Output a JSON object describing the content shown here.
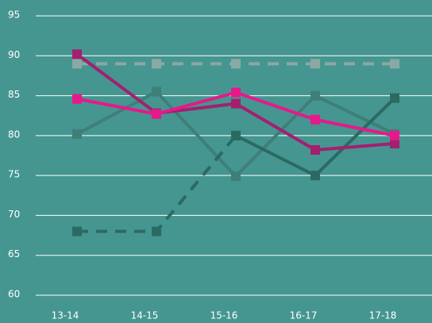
{
  "chart_data": {
    "type": "line",
    "categories": [
      "13-14",
      "14-15",
      "15-16",
      "16-17",
      "17-18"
    ],
    "ylim": [
      60,
      95
    ],
    "yticks": [
      60,
      65,
      70,
      75,
      80,
      85,
      90,
      95
    ],
    "grid": true,
    "series": [
      {
        "color": "#8aa9a4",
        "dashed": true,
        "values": [
          89,
          89,
          89,
          89,
          89
        ]
      },
      {
        "color": "#3e7f78",
        "dashed": false,
        "values": [
          80.2,
          85.5,
          74.9,
          85,
          80.2
        ]
      },
      {
        "color": "#2b6a62",
        "dashed": true,
        "values": [
          68,
          68,
          80,
          null,
          null
        ]
      },
      {
        "color": "#2b6a62",
        "dashed": false,
        "values": [
          null,
          null,
          80,
          75,
          84.7
        ]
      },
      {
        "color": "#a3206f",
        "dashed": false,
        "values": [
          90.2,
          82.8,
          84,
          78.2,
          79
        ]
      },
      {
        "color": "#e6198a",
        "dashed": false,
        "values": [
          84.6,
          82.7,
          85.4,
          82,
          80
        ]
      }
    ]
  }
}
